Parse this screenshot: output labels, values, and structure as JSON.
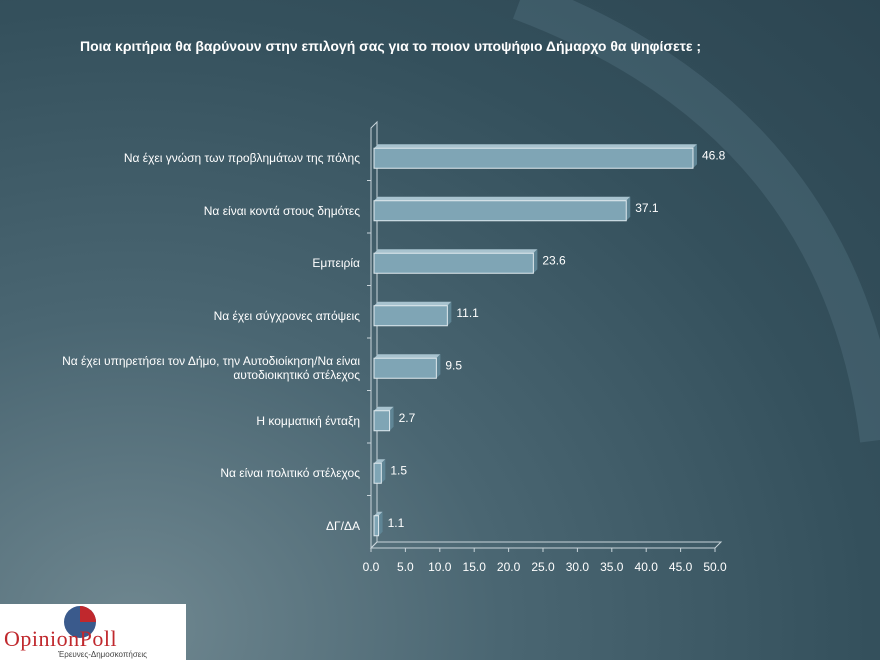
{
  "chart_data": {
    "type": "hbar",
    "title": "Ποια κριτήρια θα βαρύνουν στην επιλογή σας για το ποιον υποψήφιο Δήμαρχο θα ψηφίσετε ;",
    "categories": [
      "Να έχει γνώση των προβλημάτων της πόλης",
      "Να είναι κοντά στους δημότες",
      "Εμπειρία",
      "Να έχει σύγχρονες απόψεις",
      "Να έχει υπηρετήσει τον Δήμο, την Αυτοδιοίκηση/Να είναι αυτοδιοικητικό στέλεχος",
      "Η κομματική ένταξη",
      "Να είναι πολιτικό στέλεχος",
      "ΔΓ/ΔΑ"
    ],
    "values": [
      46.8,
      37.1,
      23.6,
      11.1,
      9.5,
      2.7,
      1.5,
      1.1
    ],
    "color": "#7fa5b5",
    "xlim": [
      0,
      50
    ],
    "xticks": [
      {
        "value": 0,
        "label": "0.0"
      },
      {
        "value": 5,
        "label": "5.0"
      },
      {
        "value": 10,
        "label": "10.0"
      },
      {
        "value": 15,
        "label": "15.0"
      },
      {
        "value": 20,
        "label": "20.0"
      },
      {
        "value": 25,
        "label": "25.0"
      },
      {
        "value": 30,
        "label": "30.0"
      },
      {
        "value": 35,
        "label": "35.0"
      },
      {
        "value": 40,
        "label": "40.0"
      },
      {
        "value": 45,
        "label": "45.0"
      },
      {
        "value": 50,
        "label": "50.0"
      }
    ]
  },
  "logo": {
    "name": "OpinionPoll",
    "tagline": "Έρευνες-Δημοσκοπήσεις"
  }
}
